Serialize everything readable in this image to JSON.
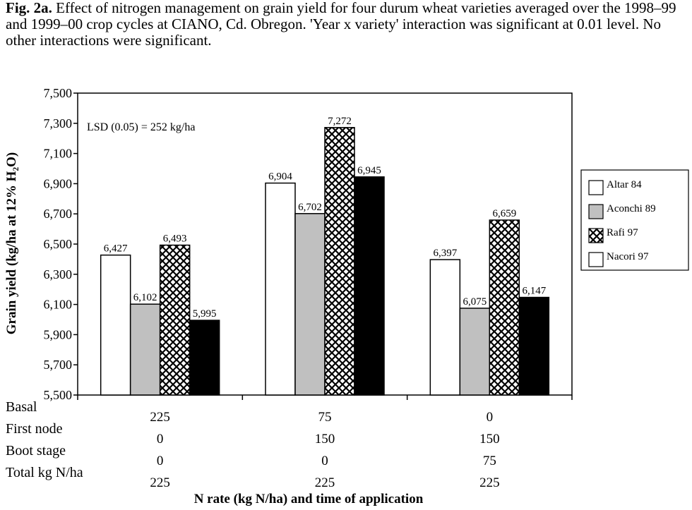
{
  "caption": {
    "label": "Fig. 2a.",
    "text": "Effect of nitrogen management on grain yield for four durum wheat varieties averaged over the 1998–99 and 1999–00 crop cycles at CIANO, Cd. Obregon.  'Year x variety' interaction was significant at 0.01 level. No other interactions were significant."
  },
  "chart_data": {
    "type": "bar",
    "title": "",
    "ylabel": "Grain yield (kg/ha at 12% H₂O)",
    "xlabel": "N rate (kg N/ha) and time of application",
    "ylim": [
      5500,
      7500
    ],
    "yticks": [
      5500,
      5700,
      5900,
      6100,
      6300,
      6500,
      6700,
      6900,
      7100,
      7300,
      7500
    ],
    "ytick_labels": [
      "5,500",
      "5,700",
      "5,900",
      "6,100",
      "6,300",
      "6,500",
      "6,700",
      "6,900",
      "7,100",
      "7,300",
      "7,500"
    ],
    "annotation": "LSD (0.05) = 252 kg/ha",
    "series": [
      {
        "name": "Altar 84",
        "fill": "white",
        "values": [
          6427,
          6904,
          6397
        ],
        "labels": [
          "6,427",
          "6,904",
          "6,397"
        ]
      },
      {
        "name": "Aconchi 89",
        "fill": "gray",
        "values": [
          6102,
          6702,
          6075
        ],
        "labels": [
          "6,102",
          "6,702",
          "6,075"
        ]
      },
      {
        "name": "Rafi 97",
        "fill": "crosshatch",
        "values": [
          6493,
          7272,
          6659
        ],
        "labels": [
          "6,493",
          "7,272",
          "6,659"
        ]
      },
      {
        "name": "Nacori 97",
        "fill": "black",
        "legend_fill": "white",
        "values": [
          5995,
          6945,
          6147
        ],
        "labels": [
          "5,995",
          "6,945",
          "6,147"
        ]
      }
    ],
    "application_table": [
      {
        "row": "Basal",
        "values": [
          "225",
          "75",
          "0"
        ]
      },
      {
        "row": "First node",
        "values": [
          "0",
          "150",
          "150"
        ]
      },
      {
        "row": "Boot stage",
        "values": [
          "0",
          "0",
          "75"
        ]
      },
      {
        "row": "Total kg N/ha",
        "values": [
          "225",
          "225",
          "225"
        ]
      }
    ],
    "legend_position": "right"
  },
  "colors": {
    "gray_fill": "#c0c0c0",
    "black_fill": "#000000",
    "white_fill": "#ffffff"
  }
}
